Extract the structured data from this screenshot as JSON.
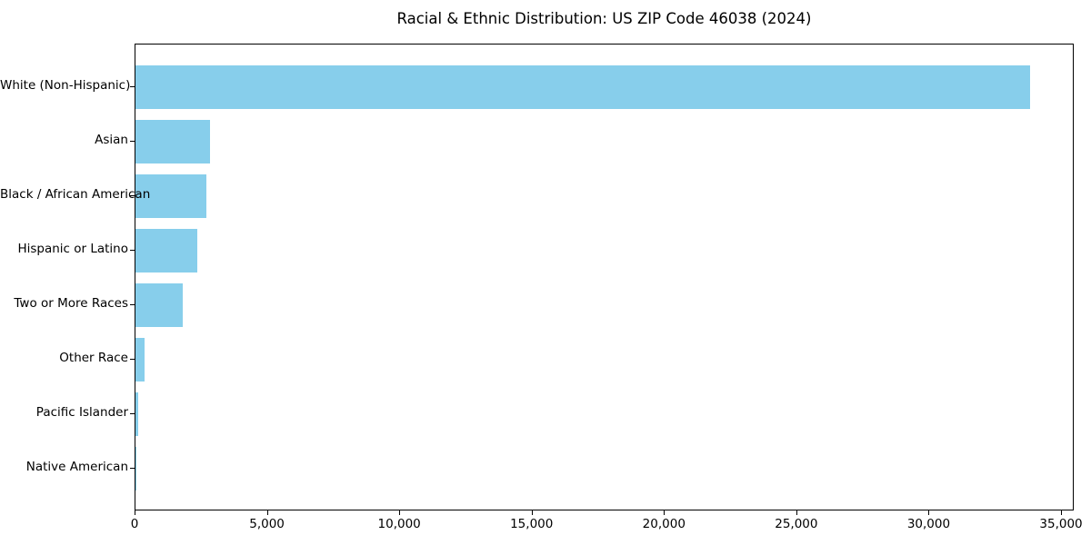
{
  "figure": {
    "background": "#ffffff"
  },
  "chart_data": {
    "type": "bar",
    "orientation": "horizontal",
    "title": "Racial & Ethnic Distribution: US ZIP Code 46038 (2024)",
    "categories": [
      "White (Non-Hispanic)",
      "Asian",
      "Black / African American",
      "Hispanic or Latino",
      "Two or More Races",
      "Other Race",
      "Pacific Islander",
      "Native American"
    ],
    "values": [
      33800,
      2820,
      2680,
      2350,
      1790,
      360,
      120,
      25
    ],
    "xlabel": "",
    "ylabel": "",
    "xlim": [
      0,
      35480
    ],
    "x_ticks": [
      0,
      5000,
      10000,
      15000,
      20000,
      25000,
      30000,
      35000
    ],
    "x_tick_labels": [
      "0",
      "5,000",
      "10,000",
      "15,000",
      "20,000",
      "25,000",
      "30,000",
      "35,000"
    ],
    "bar_color": "#87CEEB",
    "axis_color": "#000000",
    "text_color": "#000000",
    "grid": false,
    "legend": "none",
    "bar_rel_height": 0.8
  }
}
